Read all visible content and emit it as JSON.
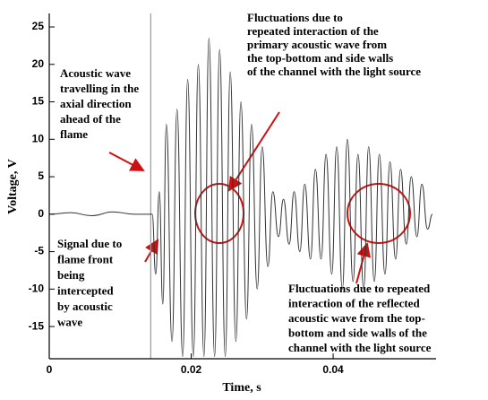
{
  "chart_data": {
    "type": "line",
    "xlabel": "Time, s",
    "ylabel": "Voltage, V",
    "x": [
      0,
      0.003,
      0.006,
      0.009,
      0.012,
      0.0145,
      0.015,
      0.0155,
      0.016,
      0.0165,
      0.0173,
      0.018,
      0.0188,
      0.0195,
      0.0203,
      0.021,
      0.0218,
      0.0225,
      0.0233,
      0.024,
      0.0248,
      0.0255,
      0.0263,
      0.027,
      0.0278,
      0.0285,
      0.0293,
      0.03,
      0.0308,
      0.0315,
      0.0323,
      0.033,
      0.0338,
      0.0345,
      0.0353,
      0.036,
      0.0368,
      0.0375,
      0.0383,
      0.039,
      0.0398,
      0.0405,
      0.0413,
      0.042,
      0.0428,
      0.0435,
      0.0443,
      0.045,
      0.0458,
      0.0465,
      0.0473,
      0.048,
      0.0488,
      0.0495,
      0.0503,
      0.051,
      0.0518,
      0.0525,
      0.0533,
      0.054
    ],
    "series": [
      {
        "name": "Voltage",
        "color": "#333333",
        "values": [
          0,
          0.2,
          -0.2,
          0.3,
          0,
          0,
          -8,
          3,
          -12,
          12,
          -17,
          14,
          -19,
          18,
          -19,
          20,
          -19,
          23.5,
          -19,
          22,
          -19,
          19,
          -17,
          15,
          -14,
          12,
          -10,
          9,
          -7,
          3,
          -3,
          2,
          -4,
          3,
          -5,
          4,
          -6,
          6,
          -6,
          8,
          -8,
          9,
          -10,
          10,
          -9,
          8,
          -10,
          9,
          -9,
          8,
          -8,
          7,
          -6,
          6,
          -4,
          5,
          -3,
          4,
          -2,
          0
        ]
      }
    ],
    "xlim": [
      0,
      0.0545
    ],
    "ylim": [
      -19.3,
      26.8
    ],
    "xticks": [
      0,
      0.02,
      0.04
    ],
    "yticks": [
      -15,
      -10,
      -5,
      0,
      5,
      10,
      15,
      20,
      25
    ],
    "vline_x": 0.0143,
    "annotations": [
      [
        "Fluctuations due to",
        "repeated interaction of the",
        "primary acoustic wave from",
        "the top-bottom and side walls",
        "of the channel with the light source"
      ],
      [
        "Acoustic wave",
        "travelling in the",
        "axial direction",
        "ahead of the",
        "flame"
      ],
      [
        "Signal due to",
        "flame front",
        "being",
        "intercepted",
        "by acoustic",
        "wave"
      ],
      [
        "Fluctuations due to repeated",
        "interaction of the reflected",
        "acoustic wave from the top-",
        "bottom and side walls of the",
        "channel with the light source"
      ]
    ]
  }
}
